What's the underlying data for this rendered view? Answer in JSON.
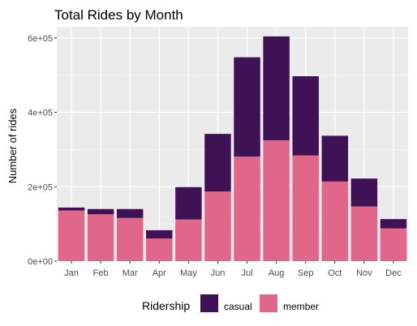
{
  "chart_data": {
    "type": "bar",
    "stacked": true,
    "title": "Total Rides by Month",
    "xlabel": "",
    "ylabel": "Number of rides",
    "categories": [
      "Jan",
      "Feb",
      "Mar",
      "Apr",
      "May",
      "Jun",
      "Jul",
      "Aug",
      "Sep",
      "Oct",
      "Nov",
      "Dec"
    ],
    "ylim": [
      0,
      630000
    ],
    "yticks": [
      0,
      200000,
      400000,
      600000
    ],
    "ytick_labels": [
      "0e+00",
      "2e+05",
      "4e+05",
      "6e+05"
    ],
    "grid": true,
    "legend": {
      "title": "Ridership",
      "position": "bottom"
    },
    "series": [
      {
        "name": "member",
        "color": "#E0668A",
        "values": [
          136000,
          126000,
          116000,
          61000,
          112000,
          187000,
          281000,
          325000,
          284000,
          214000,
          147000,
          88000
        ]
      },
      {
        "name": "casual",
        "color": "#3F1155",
        "values": [
          8000,
          14000,
          24000,
          22000,
          87000,
          155000,
          267000,
          279000,
          213000,
          123000,
          75000,
          25000
        ]
      }
    ],
    "colors": {
      "panel_background": "#EBEBEB",
      "grid": "#FFFFFF"
    }
  }
}
